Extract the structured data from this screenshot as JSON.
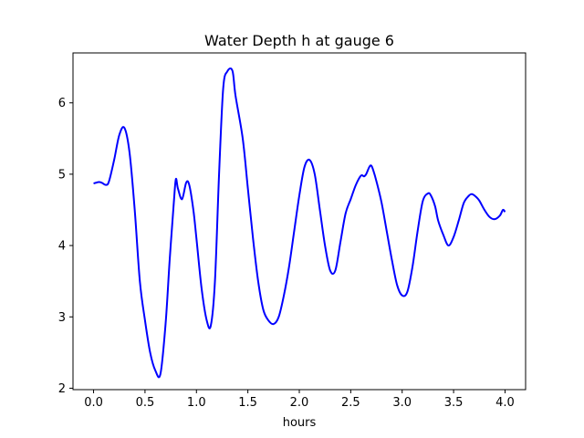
{
  "chart_data": {
    "type": "line",
    "title": "Water Depth h at gauge 6",
    "xlabel": "hours",
    "ylabel": "",
    "xlim": [
      -0.2,
      4.2
    ],
    "ylim": [
      1.98,
      6.7
    ],
    "xticks": [
      0.0,
      0.5,
      1.0,
      1.5,
      2.0,
      2.5,
      3.0,
      3.5,
      4.0
    ],
    "xtick_labels": [
      "0.0",
      "0.5",
      "1.0",
      "1.5",
      "2.0",
      "2.5",
      "3.0",
      "3.5",
      "4.0"
    ],
    "yticks": [
      2,
      3,
      4,
      5,
      6
    ],
    "ytick_labels": [
      "2",
      "3",
      "4",
      "5",
      "6"
    ],
    "grid": false,
    "legend": "none",
    "series": [
      {
        "color": "#0000ff",
        "x": [
          0.0,
          0.05,
          0.08,
          0.12,
          0.15,
          0.2,
          0.25,
          0.3,
          0.35,
          0.4,
          0.45,
          0.5,
          0.55,
          0.6,
          0.65,
          0.7,
          0.74,
          0.78,
          0.8,
          0.82,
          0.86,
          0.9,
          0.93,
          0.97,
          1.0,
          1.05,
          1.1,
          1.14,
          1.18,
          1.22,
          1.26,
          1.3,
          1.35,
          1.38,
          1.45,
          1.5,
          1.55,
          1.6,
          1.65,
          1.7,
          1.75,
          1.8,
          1.85,
          1.9,
          1.95,
          2.0,
          2.05,
          2.1,
          2.15,
          2.2,
          2.25,
          2.3,
          2.35,
          2.4,
          2.45,
          2.5,
          2.55,
          2.6,
          2.63,
          2.65,
          2.68,
          2.7,
          2.72,
          2.75,
          2.8,
          2.85,
          2.9,
          2.95,
          3.0,
          3.05,
          3.1,
          3.15,
          3.2,
          3.25,
          3.28,
          3.32,
          3.35,
          3.4,
          3.45,
          3.5,
          3.55,
          3.6,
          3.65,
          3.68,
          3.72,
          3.75,
          3.8,
          3.85,
          3.9,
          3.95,
          3.98,
          4.0
        ],
        "y": [
          4.87,
          4.89,
          4.88,
          4.85,
          4.9,
          5.2,
          5.55,
          5.65,
          5.3,
          4.5,
          3.5,
          2.95,
          2.5,
          2.25,
          2.2,
          2.9,
          3.8,
          4.6,
          4.93,
          4.8,
          4.65,
          4.88,
          4.85,
          4.5,
          4.1,
          3.4,
          2.95,
          2.88,
          3.5,
          5.0,
          6.2,
          6.44,
          6.45,
          6.1,
          5.5,
          4.8,
          4.1,
          3.5,
          3.1,
          2.95,
          2.9,
          3.0,
          3.3,
          3.7,
          4.2,
          4.7,
          5.1,
          5.2,
          5.0,
          4.5,
          4.0,
          3.65,
          3.65,
          4.05,
          4.45,
          4.65,
          4.85,
          4.98,
          4.97,
          5.0,
          5.1,
          5.12,
          5.05,
          4.9,
          4.6,
          4.2,
          3.8,
          3.45,
          3.3,
          3.35,
          3.7,
          4.2,
          4.62,
          4.73,
          4.7,
          4.55,
          4.35,
          4.15,
          4.0,
          4.12,
          4.35,
          4.6,
          4.7,
          4.72,
          4.68,
          4.63,
          4.5,
          4.4,
          4.37,
          4.42,
          4.5,
          4.47
        ]
      }
    ]
  }
}
